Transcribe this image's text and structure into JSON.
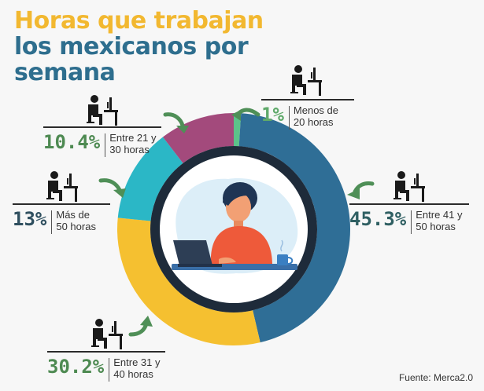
{
  "title": {
    "line1": "Horas que trabajan",
    "line2": "los mexicanos por",
    "line3": "semana"
  },
  "source": "Fuente: Merca2.0",
  "colors": {
    "title_yellow": "#f2b830",
    "title_blue": "#2e6e8e",
    "slice_green": "#5cc38a",
    "slice_blue": "#2f6e96",
    "slice_yellow": "#f5c030",
    "slice_teal": "#2bb7c6",
    "slice_purple": "#a34a7c",
    "pct_green": "#4e8a52",
    "pct_dark": "#2f4f5f",
    "arrow": "#4f8f57"
  },
  "icons": [
    "person-at-desk-icon",
    "curved-arrow-icon"
  ],
  "chart_data": {
    "type": "pie",
    "style": "donut",
    "start": "top, clockwise",
    "labels": [
      "Menos de 20 horas",
      "Entre 41 y 50 horas",
      "Entre 31 y 40 horas",
      "Más de 50 horas",
      "Entre 21 y 30 horas"
    ],
    "values": [
      1,
      45.3,
      30.2,
      13,
      10.4
    ],
    "value_labels": [
      "1%",
      "45.3%",
      "30.2%",
      "13%",
      "10.4%"
    ],
    "colors": [
      "#5cc38a",
      "#2f6e96",
      "#f5c030",
      "#2bb7c6",
      "#a34a7c"
    ]
  },
  "labels": {
    "menos20": {
      "pct": "1%",
      "line1": "Menos de",
      "line2": "20 horas"
    },
    "e41_50": {
      "pct": "45.3%",
      "line1": "Entre 41 y",
      "line2": "50 horas"
    },
    "e31_40": {
      "pct": "30.2%",
      "line1": "Entre 31 y",
      "line2": "40 horas"
    },
    "mas50": {
      "pct": "13%",
      "line1": "Más de",
      "line2": "50 horas"
    },
    "e21_30": {
      "pct": "10.4%",
      "line1": "Entre 21 y",
      "line2": "30 horas"
    }
  }
}
